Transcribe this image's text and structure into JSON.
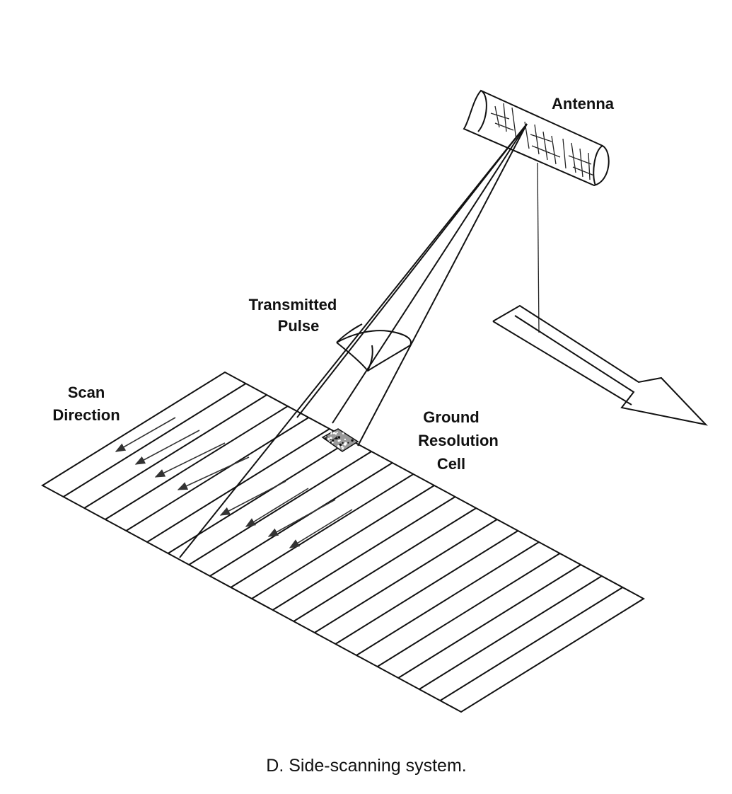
{
  "figure": {
    "caption": "D. Side-scanning system.",
    "labels": {
      "antenna": "Antenna",
      "transmitted_pulse_line1": "Transmitted",
      "transmitted_pulse_line2": "Pulse",
      "scan_direction_line1": "Scan",
      "scan_direction_line2": "Direction",
      "ground_resolution_line1": "Ground",
      "ground_resolution_line2": "Resolution",
      "ground_resolution_line3": "Cell"
    }
  },
  "colors": {
    "ink": "#111111",
    "background": "#ffffff"
  }
}
